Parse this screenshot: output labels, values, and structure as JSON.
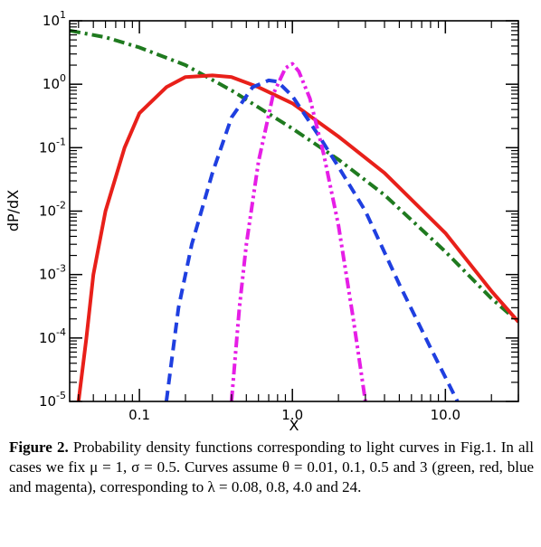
{
  "chart_data": {
    "type": "line",
    "xlabel": "X",
    "ylabel": "dP/dX",
    "xscale": "log",
    "yscale": "log",
    "xlim": [
      0.035,
      30
    ],
    "ylim": [
      1e-05,
      10
    ],
    "x_ticks": [
      {
        "value": 0.1,
        "label": "0.1"
      },
      {
        "value": 1.0,
        "label": "1.0"
      },
      {
        "value": 10.0,
        "label": "10.0"
      }
    ],
    "y_ticks": [
      {
        "value": 10,
        "base": "10",
        "exp": "1"
      },
      {
        "value": 1,
        "base": "10",
        "exp": "0"
      },
      {
        "value": 0.1,
        "base": "10",
        "exp": "-1"
      },
      {
        "value": 0.01,
        "base": "10",
        "exp": "-2"
      },
      {
        "value": 0.001,
        "base": "10",
        "exp": "-3"
      },
      {
        "value": 0.0001,
        "base": "10",
        "exp": "-4"
      },
      {
        "value": 1e-05,
        "base": "10",
        "exp": "-5"
      }
    ],
    "grid": false,
    "legend": "none",
    "series": [
      {
        "color": "#1f7a1f",
        "style": "dash-dot",
        "x": [
          0.035,
          0.06,
          0.1,
          0.2,
          0.4,
          1.0,
          2.0,
          4.0,
          10.0,
          20.0,
          30.0
        ],
        "y": [
          7.0,
          5.5,
          3.8,
          2.0,
          0.8,
          0.2,
          0.065,
          0.018,
          0.0023,
          0.00042,
          0.00018
        ]
      },
      {
        "color": "#e8201a",
        "style": "solid",
        "x": [
          0.04,
          0.045,
          0.05,
          0.06,
          0.08,
          0.1,
          0.15,
          0.2,
          0.3,
          0.4,
          0.6,
          1.0,
          2.0,
          4.0,
          10.0,
          20.0,
          30.0
        ],
        "y": [
          1e-05,
          0.0001,
          0.001,
          0.01,
          0.1,
          0.35,
          0.9,
          1.3,
          1.38,
          1.3,
          0.9,
          0.5,
          0.15,
          0.04,
          0.0045,
          0.00055,
          0.00018
        ]
      },
      {
        "color": "#1f3fe0",
        "style": "dashed",
        "x": [
          0.15,
          0.18,
          0.22,
          0.3,
          0.4,
          0.55,
          0.7,
          0.8,
          1.0,
          1.5,
          2.0,
          3.0,
          5.0,
          8.0,
          12.0
        ],
        "y": [
          1e-05,
          0.0003,
          0.003,
          0.04,
          0.3,
          0.9,
          1.15,
          1.1,
          0.65,
          0.15,
          0.05,
          0.01,
          0.0007,
          7e-05,
          1e-05
        ]
      },
      {
        "color": "#e61ee6",
        "style": "dash-dot-dot",
        "x": [
          0.4,
          0.45,
          0.5,
          0.6,
          0.75,
          0.9,
          1.0,
          1.1,
          1.3,
          1.6,
          2.0,
          2.5,
          3.0
        ],
        "y": [
          1e-05,
          0.0003,
          0.003,
          0.06,
          0.7,
          1.8,
          2.1,
          1.6,
          0.6,
          0.08,
          0.006,
          0.0002,
          1e-05
        ]
      }
    ]
  },
  "caption": {
    "label": "Figure 2.",
    "text": " Probability density functions corresponding to light curves in Fig.1. In all cases we fix μ = 1, σ = 0.5. Curves assume θ = 0.01, 0.1, 0.5 and 3 (green, red, blue and magenta), corresponding to λ = 0.08, 0.8, 4.0 and 24."
  }
}
